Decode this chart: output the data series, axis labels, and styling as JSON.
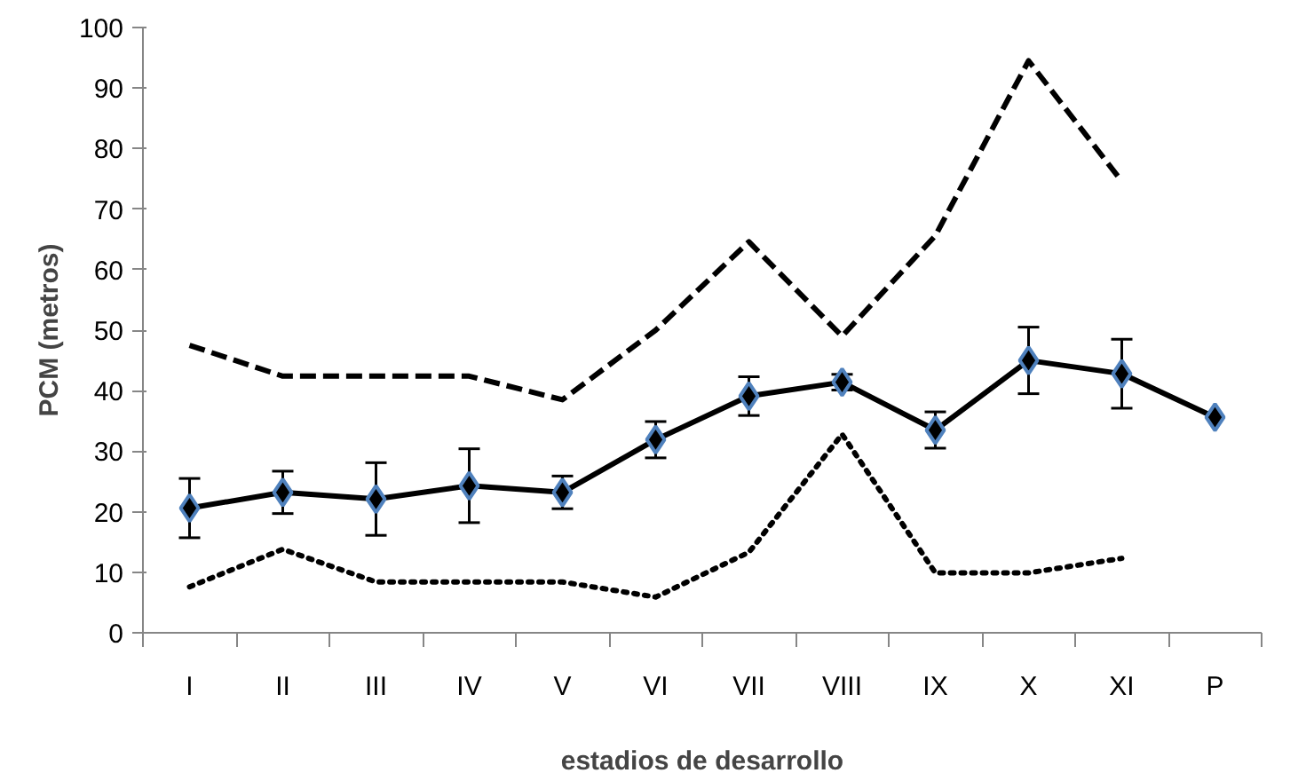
{
  "chart_data": {
    "type": "line",
    "xlabel": "estadios de desarrollo",
    "ylabel": "PCM (metros)",
    "categories": [
      "I",
      "II",
      "III",
      "IV",
      "V",
      "VI",
      "VII",
      "VIII",
      "IX",
      "X",
      "XI",
      "P"
    ],
    "ylim": [
      0,
      100
    ],
    "yticks": [
      0,
      10,
      20,
      30,
      40,
      50,
      60,
      70,
      80,
      90,
      100
    ],
    "grid": false,
    "series": [
      {
        "color": "#000000",
        "line_style": "dashed",
        "marker": "none",
        "values": [
          47.5,
          42.4,
          42.4,
          42.4,
          38.5,
          50,
          64.6,
          49,
          65.6,
          94.5,
          74.6,
          null
        ]
      },
      {
        "color": "#000000",
        "line_style": "dotted",
        "marker": "none",
        "values": [
          7.6,
          13.8,
          8.4,
          8.4,
          8.4,
          5.9,
          13.3,
          32.8,
          9.9,
          9.9,
          12.3,
          null
        ]
      },
      {
        "color": "#000000",
        "line_style": "solid",
        "marker": "diamond",
        "values": [
          20.6,
          23.2,
          22.1,
          24.3,
          23.2,
          31.9,
          39.1,
          41.4,
          33.5,
          45.0,
          42.8,
          35.6
        ],
        "errors": [
          4.9,
          3.5,
          6,
          6.1,
          2.7,
          3,
          3.2,
          1.3,
          3,
          5.5,
          5.7,
          null
        ]
      }
    ]
  }
}
